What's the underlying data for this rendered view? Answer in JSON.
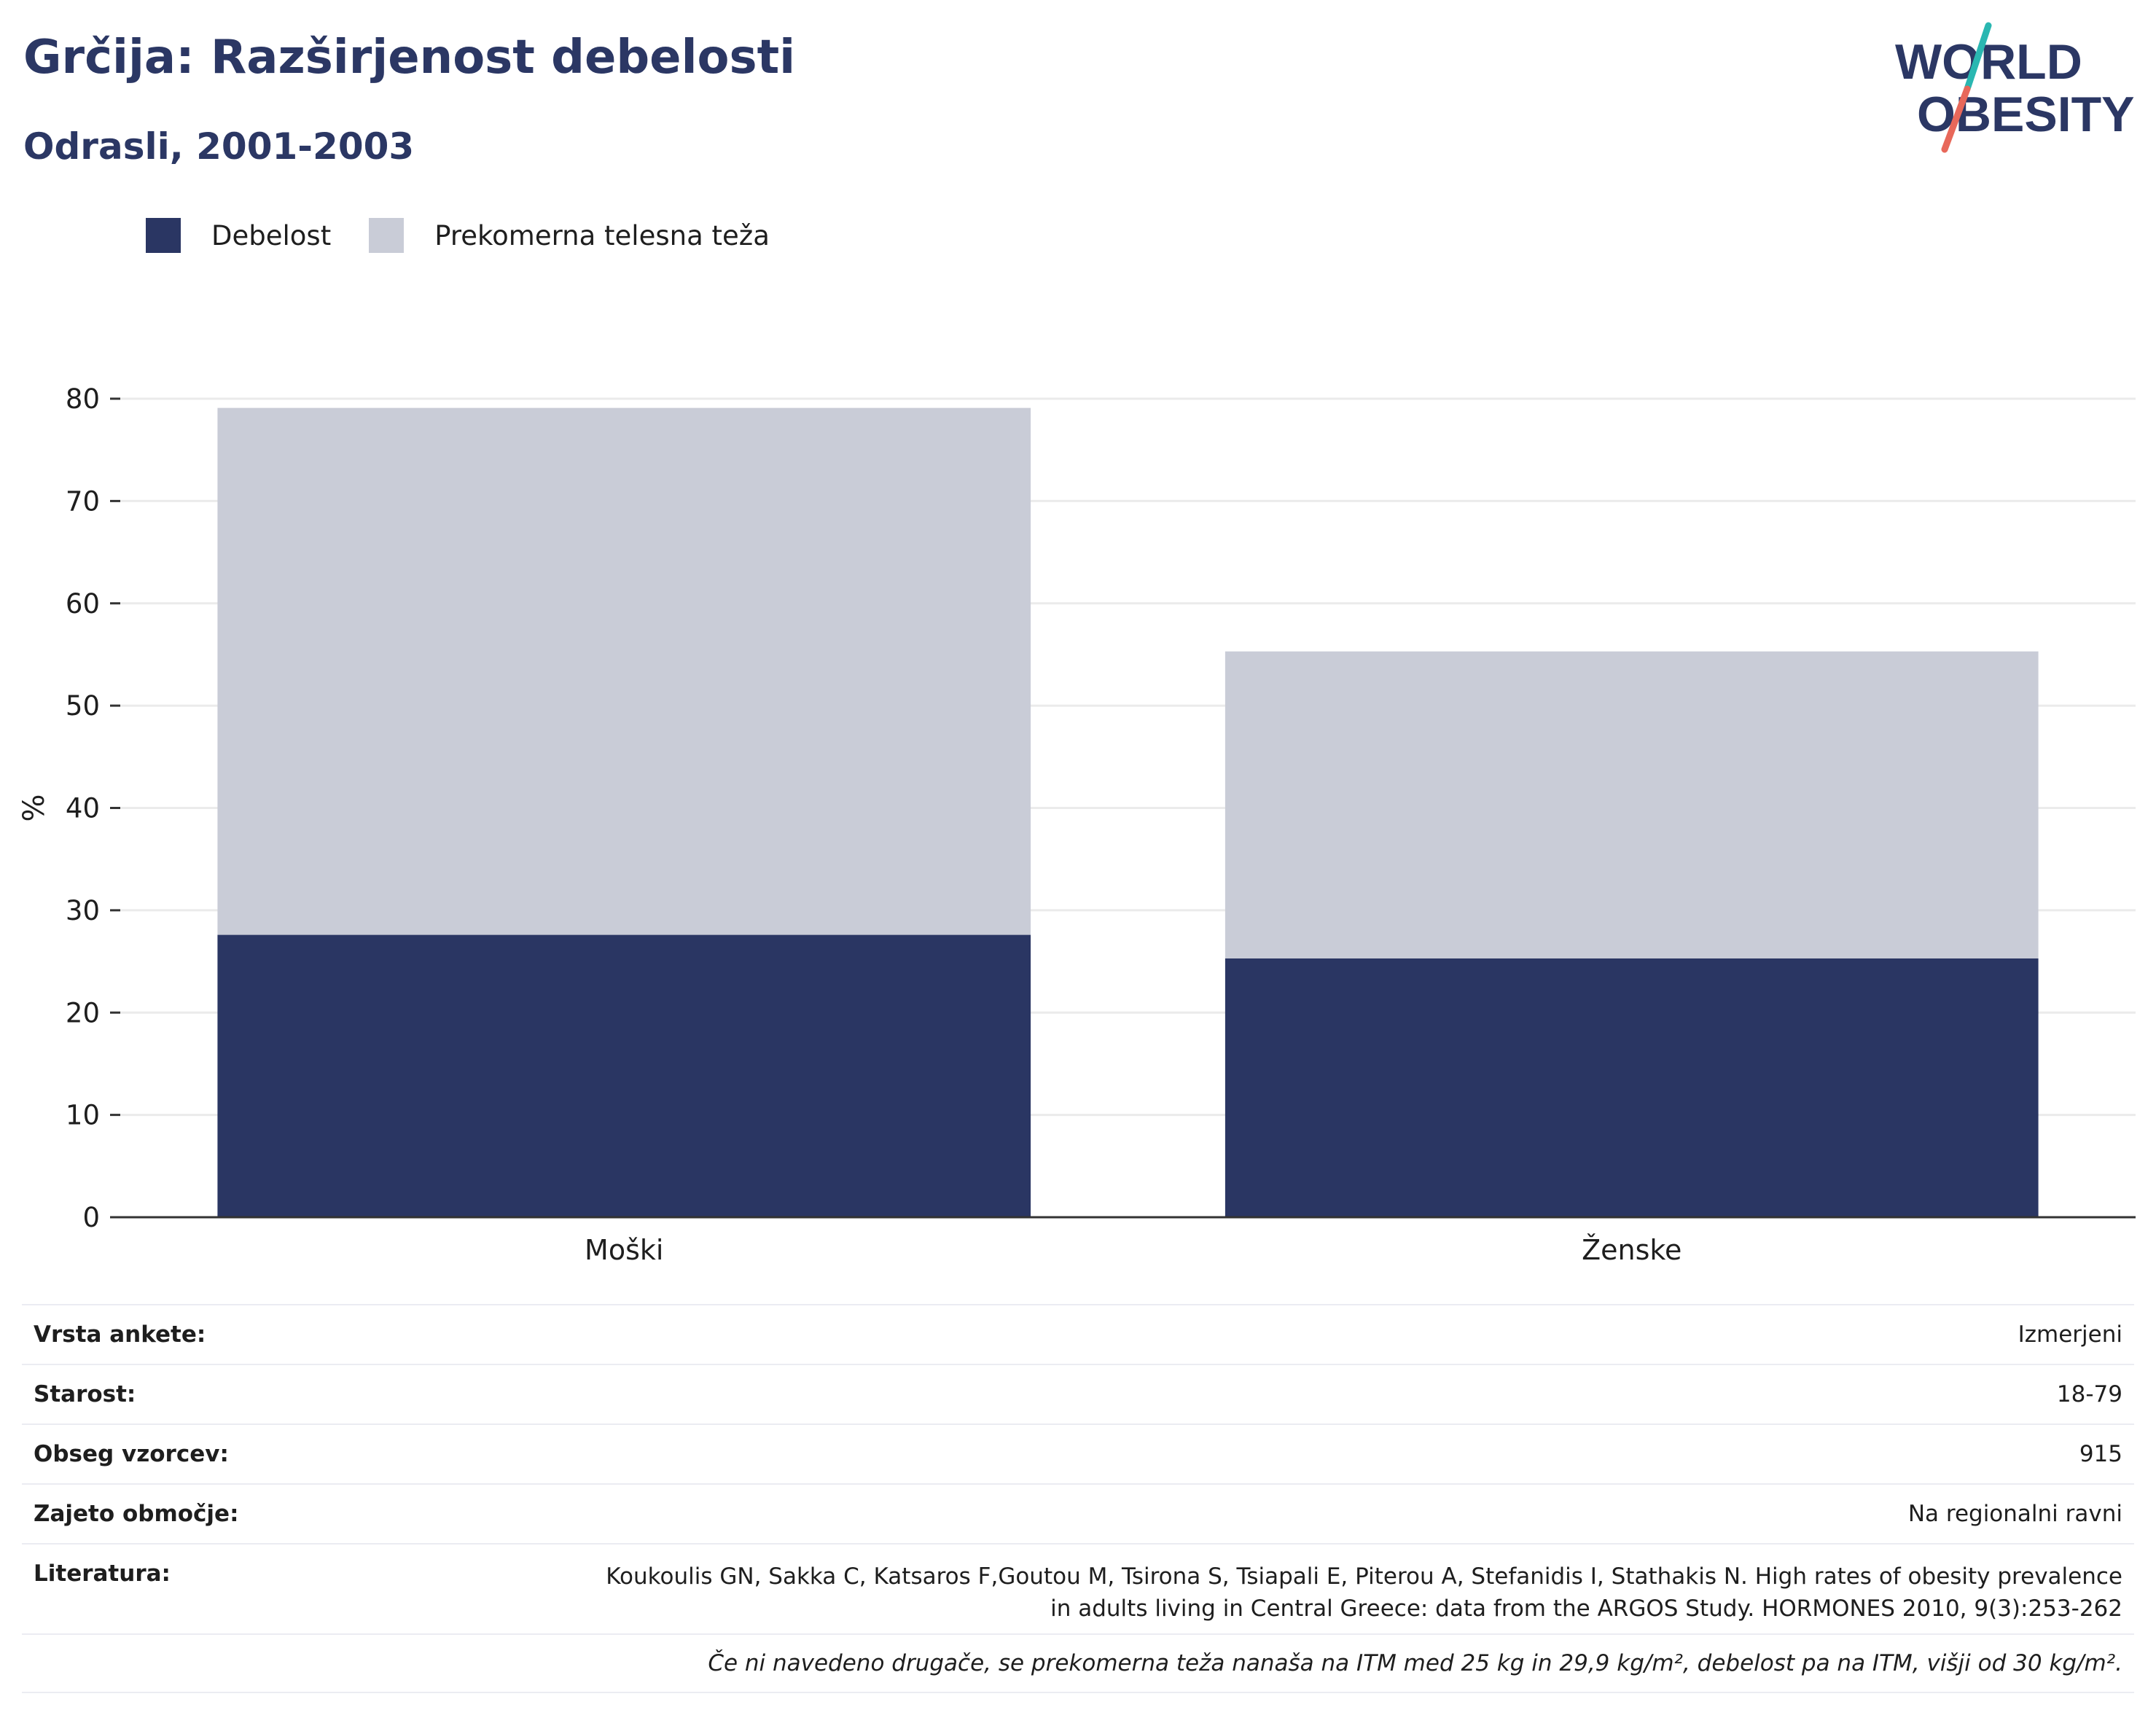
{
  "header": {
    "title": "Grčija: Razširjenost debelosti",
    "subtitle": "Odrasli, 2001-2003"
  },
  "logo": {
    "line1": "WORLD",
    "line2": "OBESITY",
    "name": "world-obesity-logo"
  },
  "colors": {
    "obesity": "#2a3663",
    "overweight": "#c9ccd7",
    "text": "#1e1e1e",
    "brand": "#2b3764"
  },
  "chart_data": {
    "type": "bar",
    "stacked": true,
    "categories": [
      "Moški",
      "Ženske"
    ],
    "series": [
      {
        "name": "Debelost",
        "values": [
          27.6,
          25.3
        ]
      },
      {
        "name": "Prekomerna telesna teža",
        "values": [
          51.5,
          30.0
        ]
      }
    ],
    "ylabel": "%",
    "xlabel": "",
    "ylim": [
      0,
      80
    ],
    "yticks": [
      0,
      10,
      20,
      30,
      40,
      50,
      60,
      70,
      80
    ],
    "grid": true,
    "legend": "top-left"
  },
  "info": [
    {
      "label": "Vrsta ankete:",
      "value": [
        "Izmerjeni"
      ]
    },
    {
      "label": "Starost:",
      "value": [
        "18-79"
      ]
    },
    {
      "label": "Obseg vzorcev:",
      "value": [
        "915"
      ]
    },
    {
      "label": "Zajeto območje:",
      "value": [
        "Na regionalni ravni"
      ]
    },
    {
      "label": "Literatura:",
      "value": [
        "Koukoulis GN, Sakka C, Katsaros F,Goutou M, Tsirona S, Tsiapali E, Piterou A, Stefanidis I, Stathakis N. High rates of obesity prevalence",
        "in adults living in Central Greece: data from the ARGOS Study. HORMONES 2010, 9(3):253-262"
      ]
    }
  ],
  "note": "Če ni navedeno drugače, se prekomerna teža nanaša na ITM med 25 kg in 29,9 kg/m², debelost pa na ITM, višji od 30 kg/m²."
}
